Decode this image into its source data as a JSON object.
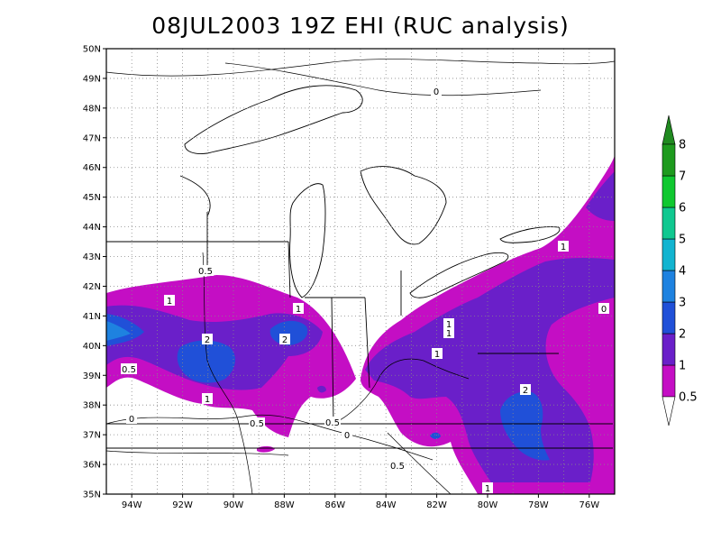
{
  "title": "08JUL2003 19Z EHI (RUC analysis)",
  "map": {
    "lat_min": 35,
    "lat_max": 50,
    "lon_min": -95,
    "lon_max": -75,
    "lat_labels": [
      "35N",
      "36N",
      "37N",
      "38N",
      "39N",
      "40N",
      "41N",
      "42N",
      "43N",
      "44N",
      "45N",
      "46N",
      "47N",
      "48N",
      "49N",
      "50N"
    ],
    "lon_labels": [
      "94W",
      "92W",
      "90W",
      "88W",
      "86W",
      "84W",
      "82W",
      "80W",
      "78W",
      "76W"
    ],
    "gridlines": "dotted"
  },
  "colorbar": {
    "levels": [
      "0.5",
      "1",
      "2",
      "3",
      "4",
      "5",
      "6",
      "7",
      "8"
    ],
    "colors": [
      "#ffffff",
      "#c40ec4",
      "#6a1fc9",
      "#2050d8",
      "#1e82e0",
      "#12b4d0",
      "#10c890",
      "#10c830",
      "#1e9a1e",
      "#208a20"
    ]
  },
  "contour_labels": [
    "0.5",
    "1",
    "2",
    "0",
    "0.5",
    "1",
    "2",
    "1",
    "2"
  ],
  "colors": {
    "magenta": "#c40ec4",
    "purple": "#6a1fc9",
    "blue": "#2050d8",
    "lightblue": "#1e82e0"
  }
}
